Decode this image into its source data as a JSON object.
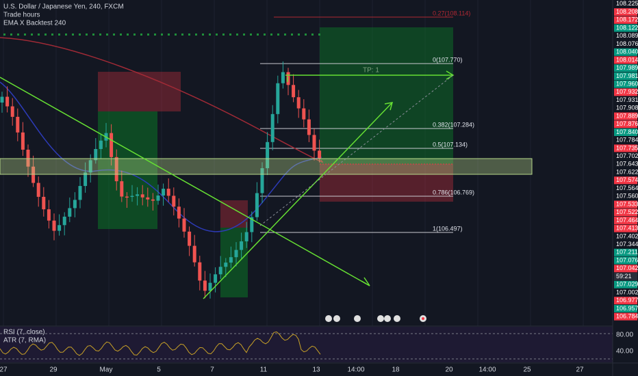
{
  "legend": {
    "symbol": "U.S. Dollar / Japanese Yen, 240, FXCM",
    "study1": "Trade hours",
    "study2": "EMA X Backtest 240"
  },
  "fib": {
    "top_ext": "0.27(108.114)",
    "l0": "0(107.770)",
    "l382": "0.382(107.284)",
    "l5": "0.5(107.134)",
    "l786": "0.786(106.769)",
    "l1": "1(106.497)"
  },
  "tp_label": "TP: 1",
  "price_axis": {
    "labels": [
      {
        "text": "108.225",
        "color": "#131722"
      },
      {
        "text": "108.208",
        "color": "#f23645"
      },
      {
        "text": "108.172",
        "color": "#f23645"
      },
      {
        "text": "108.122",
        "color": "#089981"
      },
      {
        "text": "108.089",
        "color": "#131722"
      },
      {
        "text": "108.076",
        "color": "#131722"
      },
      {
        "text": "108.040",
        "color": "#089981"
      },
      {
        "text": "108.014",
        "color": "#f23645"
      },
      {
        "text": "107.989",
        "color": "#089981"
      },
      {
        "text": "107.981",
        "color": "#089981"
      },
      {
        "text": "107.960",
        "color": "#089981"
      },
      {
        "text": "107.932",
        "color": "#f23645"
      },
      {
        "text": "107.931",
        "color": "#131722"
      },
      {
        "text": "107.908",
        "color": "#131722"
      },
      {
        "text": "107.889",
        "color": "#f23645"
      },
      {
        "text": "107.876",
        "color": "#f23645"
      },
      {
        "text": "107.840",
        "color": "#089981"
      },
      {
        "text": "107.784",
        "color": "#131722"
      },
      {
        "text": "107.735",
        "color": "#f23645"
      },
      {
        "text": "107.702",
        "color": "#131722"
      },
      {
        "text": "107.643",
        "color": "#131722"
      },
      {
        "text": "107.622",
        "color": "#131722"
      },
      {
        "text": "107.574",
        "color": "#f23645"
      },
      {
        "text": "107.564",
        "color": "#131722"
      },
      {
        "text": "107.560",
        "color": "#131722"
      },
      {
        "text": "107.533",
        "color": "#f23645"
      },
      {
        "text": "107.522",
        "color": "#f23645"
      },
      {
        "text": "107.464",
        "color": "#f23645"
      },
      {
        "text": "107.413",
        "color": "#f23645"
      },
      {
        "text": "107.402",
        "color": "#131722"
      },
      {
        "text": "107.344",
        "color": "#131722"
      },
      {
        "text": "107.211",
        "color": "#089981"
      },
      {
        "text": "107.076",
        "color": "#089981"
      },
      {
        "text": "107.042",
        "color": "#f23645"
      },
      {
        "text": "59:21",
        "color": "#2a2e39"
      },
      {
        "text": "107.029",
        "color": "#089981"
      },
      {
        "text": "107.002",
        "color": "#131722"
      },
      {
        "text": "106.977",
        "color": "#f23645"
      },
      {
        "text": "106.957",
        "color": "#089981"
      },
      {
        "text": "106.784",
        "color": "#f23645"
      }
    ]
  },
  "time_axis": [
    "27",
    "29",
    "May",
    "5",
    "7",
    "11",
    "13",
    "14:00",
    "18",
    "20",
    "14:00",
    "25",
    "27"
  ],
  "oscillator": {
    "rsi": "RSI (7, close)",
    "atr": "ATR (7, RMA)",
    "upper": "80.00",
    "lower": "40.00"
  }
}
